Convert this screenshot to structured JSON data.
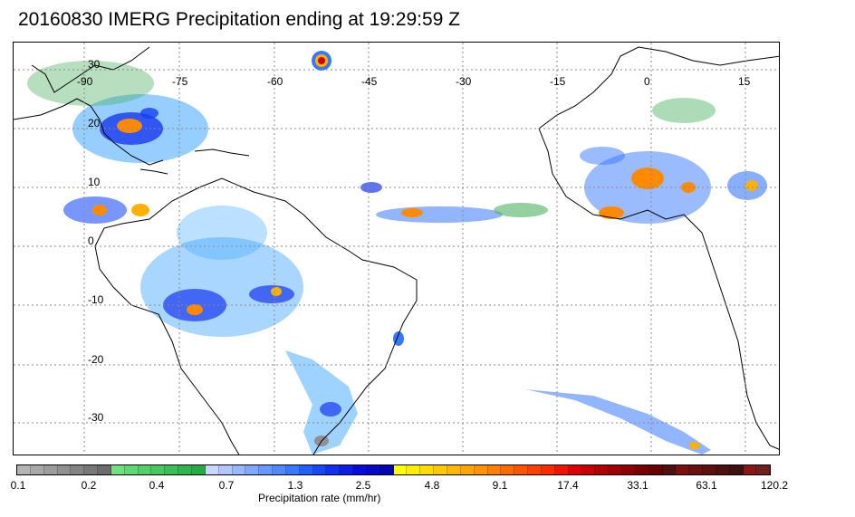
{
  "title": "20160830 IMERG Precipitation ending at 19:29:59 Z",
  "map": {
    "lon_labels": [
      "-90",
      "-75",
      "-60",
      "-45",
      "-30",
      "-15",
      "0",
      "15"
    ],
    "lat_labels": [
      "30",
      "20",
      "10",
      "0",
      "-10",
      "-20",
      "-30"
    ]
  },
  "colorbar": {
    "colors": [
      "#b4b4b4",
      "#a8a8a8",
      "#9c9c9c",
      "#909090",
      "#848484",
      "#787878",
      "#6c6c6c",
      "#6fe07b",
      "#62d872",
      "#55cf68",
      "#48c65f",
      "#3cbe56",
      "#30b54c",
      "#25ac44",
      "#c8d8ff",
      "#b0c8ff",
      "#98b8ff",
      "#80a8ff",
      "#6898ff",
      "#5088ff",
      "#3878ff",
      "#2060ff",
      "#1848f8",
      "#0f30f0",
      "#0a1ee6",
      "#0a0adc",
      "#0808c8",
      "#0606b0",
      "#ffff00",
      "#ffee00",
      "#ffdc00",
      "#ffca00",
      "#ffb800",
      "#ffa600",
      "#ff9400",
      "#ff7f00",
      "#ff6a00",
      "#ff5500",
      "#ff4000",
      "#ff2b00",
      "#f01500",
      "#e00000",
      "#c80000",
      "#b40000",
      "#a00000",
      "#8c0000",
      "#780000",
      "#640000",
      "#501010",
      "#781010",
      "#6a1010",
      "#5c1010",
      "#4e1010",
      "#401010",
      "#881818",
      "#702020"
    ],
    "tick_labels": [
      "0.1",
      "0.2",
      "0.4",
      "0.7",
      "1.3",
      "2.5",
      "4.8",
      "9.1",
      "17.4",
      "33.1",
      "63.1",
      "120.2"
    ],
    "label": "Precipitation rate (mm/hr)"
  }
}
